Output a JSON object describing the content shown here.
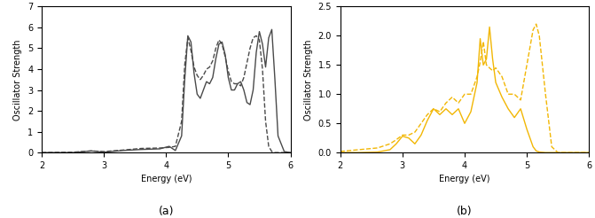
{
  "chart_data": [
    {
      "type": "line",
      "caption": "(a)",
      "xlabel": "Energy (eV)",
      "ylabel": "Oscillator Strength",
      "xlim": [
        2,
        6
      ],
      "ylim": [
        0,
        7
      ],
      "xticks": [
        2,
        3,
        4,
        5,
        6
      ],
      "yticks": [
        0,
        1,
        2,
        3,
        4,
        5,
        6,
        7
      ],
      "x": [
        2.0,
        2.5,
        2.8,
        3.0,
        3.3,
        3.6,
        3.9,
        4.05,
        4.15,
        4.25,
        4.3,
        4.35,
        4.4,
        4.45,
        4.5,
        4.55,
        4.6,
        4.65,
        4.7,
        4.75,
        4.8,
        4.85,
        4.9,
        4.95,
        5.0,
        5.05,
        5.1,
        5.15,
        5.2,
        5.25,
        5.3,
        5.35,
        5.4,
        5.45,
        5.5,
        5.55,
        5.6,
        5.65,
        5.7,
        5.75,
        5.8,
        5.9,
        6.0
      ],
      "series": [
        {
          "color": "#4a4a4a",
          "line_style": "dashed",
          "values": [
            0,
            0.02,
            0.08,
            0.05,
            0.12,
            0.2,
            0.22,
            0.25,
            0.3,
            1.5,
            4.2,
            5.5,
            4.9,
            4.1,
            3.7,
            3.5,
            3.7,
            4.0,
            4.1,
            4.4,
            5.0,
            5.4,
            5.2,
            4.6,
            3.9,
            3.4,
            3.3,
            3.3,
            3.2,
            3.6,
            4.3,
            5.0,
            5.5,
            5.6,
            5.4,
            4.0,
            1.5,
            0.3,
            0.05,
            0,
            0,
            0,
            0
          ]
        },
        {
          "color": "#4a4a4a",
          "line_style": "solid",
          "values": [
            0,
            0,
            0.08,
            0.02,
            0.1,
            0.15,
            0.18,
            0.3,
            0.1,
            0.8,
            3.5,
            5.6,
            5.3,
            3.8,
            2.8,
            2.6,
            3.0,
            3.4,
            3.3,
            3.6,
            4.5,
            5.2,
            5.3,
            4.7,
            3.6,
            3.0,
            3.0,
            3.3,
            3.4,
            3.0,
            2.4,
            2.3,
            3.0,
            4.8,
            5.8,
            5.2,
            4.1,
            5.5,
            5.9,
            3.5,
            0.8,
            0.05,
            0
          ]
        }
      ]
    },
    {
      "type": "line",
      "caption": "(b)",
      "xlabel": "Energy (eV)",
      "ylabel": "Oscillator Strength",
      "xlim": [
        2,
        6
      ],
      "ylim": [
        0,
        2.5
      ],
      "xticks": [
        2,
        3,
        4,
        5,
        6
      ],
      "yticks": [
        {
          "value": 0,
          "label": "0.0"
        },
        0.5,
        {
          "value": 1,
          "label": "1.0"
        },
        1.5,
        {
          "value": 2,
          "label": "2.0"
        },
        2.5
      ],
      "x": [
        2.0,
        2.3,
        2.6,
        2.8,
        2.9,
        3.0,
        3.1,
        3.2,
        3.3,
        3.4,
        3.5,
        3.6,
        3.7,
        3.8,
        3.9,
        4.0,
        4.1,
        4.2,
        4.25,
        4.3,
        4.35,
        4.4,
        4.45,
        4.5,
        4.6,
        4.7,
        4.8,
        4.9,
        5.0,
        5.1,
        5.15,
        5.2,
        5.3,
        5.4,
        5.5,
        6.0
      ],
      "series": [
        {
          "color": "#f2b705",
          "line_style": "dashed",
          "values": [
            0.02,
            0.05,
            0.08,
            0.15,
            0.22,
            0.3,
            0.3,
            0.35,
            0.5,
            0.65,
            0.75,
            0.7,
            0.85,
            0.95,
            0.85,
            1.0,
            1.0,
            1.3,
            1.55,
            1.9,
            1.5,
            1.45,
            1.4,
            1.45,
            1.3,
            1.0,
            1.0,
            0.9,
            1.5,
            2.1,
            2.2,
            2.0,
            1.0,
            0.1,
            0,
            0
          ]
        },
        {
          "color": "#f2b705",
          "line_style": "solid",
          "values": [
            0,
            0,
            0.01,
            0.05,
            0.15,
            0.28,
            0.25,
            0.15,
            0.3,
            0.55,
            0.75,
            0.65,
            0.75,
            0.65,
            0.75,
            0.5,
            0.7,
            1.2,
            1.95,
            1.5,
            1.6,
            2.15,
            1.6,
            1.2,
            0.95,
            0.75,
            0.6,
            0.75,
            0.4,
            0.1,
            0.03,
            0.01,
            0,
            0,
            0,
            0
          ]
        }
      ]
    }
  ]
}
